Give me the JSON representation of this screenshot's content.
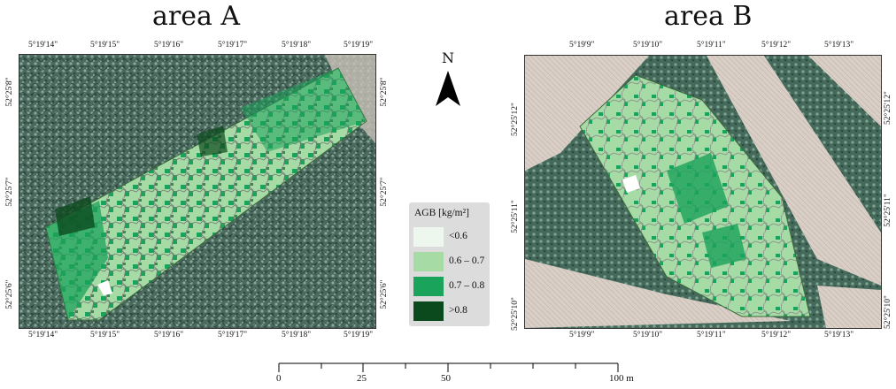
{
  "maps": [
    {
      "title": "area A",
      "lon_ticks": [
        "5°19'14\"",
        "5°19'15\"",
        "5°19'16\"",
        "5°19'17\"",
        "5°19'18\"",
        "5°19'19\""
      ],
      "lat_ticks": [
        "52°25'8\"",
        "52°25'7\"",
        "52°25'6\""
      ]
    },
    {
      "title": "area B",
      "lon_ticks": [
        "5°19'9\"",
        "5°19'10\"",
        "5°19'11\"",
        "5°19'12\"",
        "5°19'13\""
      ],
      "lat_ticks": [
        "52°25'12\"",
        "52°25'11\"",
        "52°25'10\""
      ]
    }
  ],
  "north_arrow": {
    "label": "N",
    "icon": "north-arrow-icon"
  },
  "legend": {
    "title": "AGB [kg/m²]",
    "items": [
      {
        "label": "<0.6",
        "color": "#eef7ee"
      },
      {
        "label": "0.6 – 0.7",
        "color": "#a6dba6"
      },
      {
        "label": "0.7 – 0.8",
        "color": "#1aa35a"
      },
      {
        "label": ">0.8",
        "color": "#0b4a1d"
      }
    ]
  },
  "scale_bar": {
    "labels": [
      "0",
      "25",
      "50",
      "100 m"
    ]
  }
}
